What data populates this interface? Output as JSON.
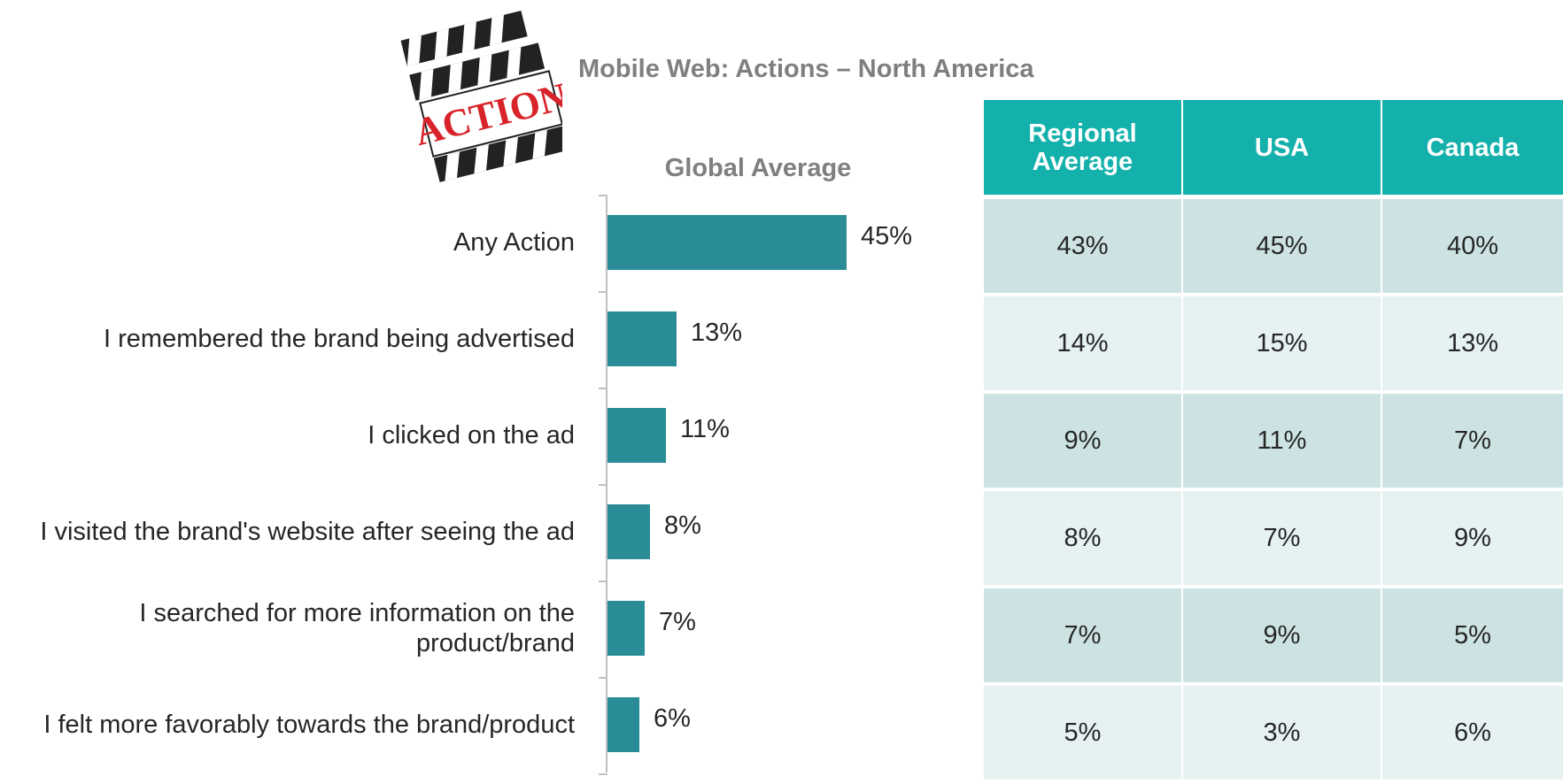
{
  "icon_text": "ACTION",
  "chart_data": {
    "type": "bar",
    "orientation": "horizontal",
    "title": "Mobile Web: Actions –  North America",
    "subtitle": "Global Average",
    "categories": [
      "Any Action",
      "I remembered the brand being advertised",
      "I clicked on the ad",
      "I visited the brand's website after seeing the ad",
      "I searched for more information on the product/brand",
      "I felt more favorably towards the brand/product"
    ],
    "values": [
      45,
      13,
      11,
      8,
      7,
      6
    ],
    "value_labels": [
      "45%",
      "13%",
      "11%",
      "8%",
      "7%",
      "6%"
    ],
    "color": "#2a8c96"
  },
  "table": {
    "header": [
      "Regional Average",
      "USA",
      "Canada"
    ],
    "rows": [
      [
        "43%",
        "45%",
        "40%"
      ],
      [
        "14%",
        "15%",
        "13%"
      ],
      [
        "9%",
        "11%",
        "7%"
      ],
      [
        "8%",
        "7%",
        "9%"
      ],
      [
        "7%",
        "9%",
        "5%"
      ],
      [
        "5%",
        "3%",
        "6%"
      ]
    ]
  }
}
